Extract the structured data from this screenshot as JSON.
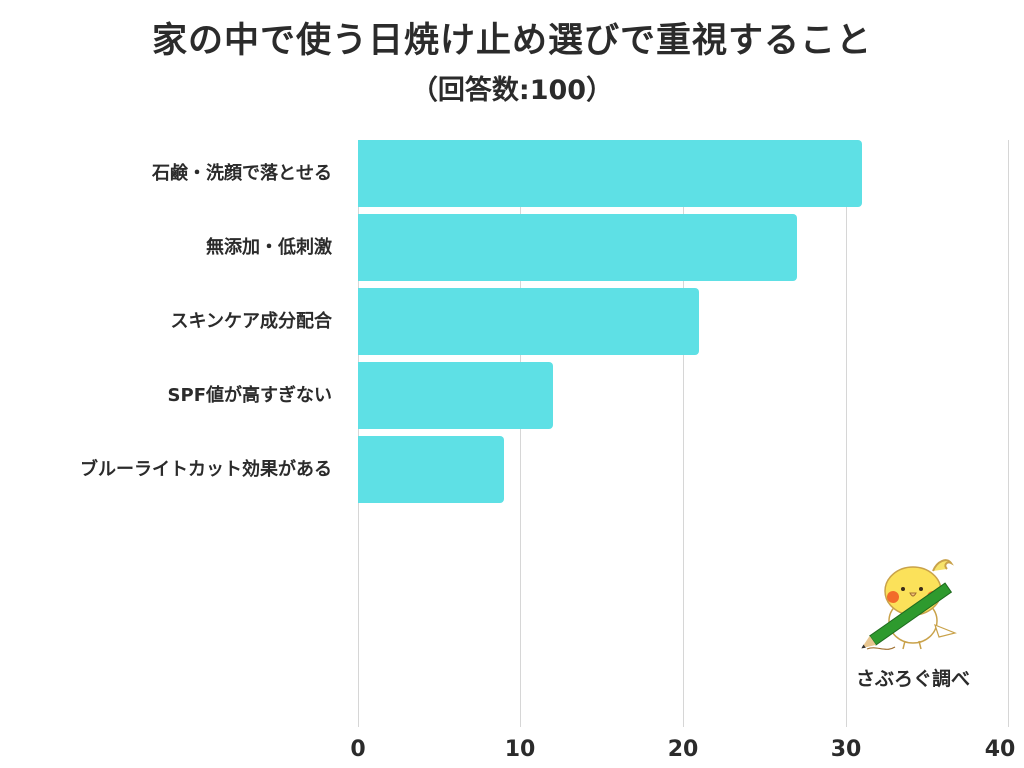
{
  "header": {
    "title": "家の中で使う日焼け止め選びで重視すること",
    "subtitle": "（回答数:100）"
  },
  "credit": {
    "label": "さぶろぐ調べ",
    "icon": "cockatiel-with-pencil-icon"
  },
  "colors": {
    "bar": "#5ee0e5",
    "text": "#2b2b2b",
    "grid": "#d6d6d6",
    "background": "#ffffff"
  },
  "axis": {
    "ticks": [
      "0",
      "10",
      "20",
      "30",
      "40"
    ]
  },
  "chart_data": {
    "type": "bar",
    "orientation": "horizontal",
    "title": "家の中で使う日焼け止め選びで重視すること",
    "subtitle": "（回答数:100）",
    "categories": [
      "石鹸・洗顔で落とせる",
      "無添加・低刺激",
      "スキンケア成分配合",
      "SPF値が高すぎない",
      "ブルーライトカット効果がある"
    ],
    "values": [
      31,
      27,
      21,
      12,
      9
    ],
    "xlabel": "",
    "ylabel": "",
    "xlim": [
      0,
      40
    ],
    "xticks": [
      0,
      10,
      20,
      30,
      40
    ],
    "grid": true,
    "legend": null,
    "annotation": "さぶろぐ調べ"
  }
}
